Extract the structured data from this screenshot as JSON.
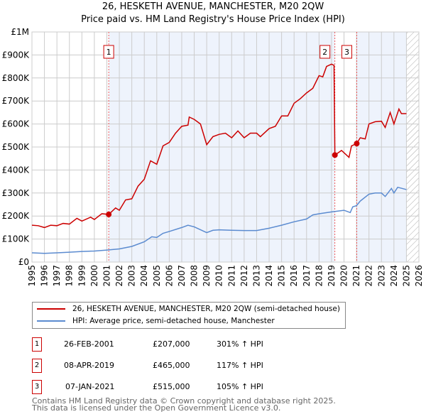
{
  "title": "26, HESKETH AVENUE, MANCHESTER, M20 2QW",
  "subtitle": "Price paid vs. HM Land Registry's House Price Index (HPI)",
  "chart_data": {
    "type": "line",
    "title": "26, HESKETH AVENUE, MANCHESTER, M20 2QW",
    "ylim": [
      0,
      1000000
    ],
    "xlim": [
      1995,
      2026
    ],
    "yticks": [
      {
        "v": 0,
        "l": "£0"
      },
      {
        "v": 100000,
        "l": "£100K"
      },
      {
        "v": 200000,
        "l": "£200K"
      },
      {
        "v": 300000,
        "l": "£300K"
      },
      {
        "v": 400000,
        "l": "£400K"
      },
      {
        "v": 500000,
        "l": "£500K"
      },
      {
        "v": 600000,
        "l": "£600K"
      },
      {
        "v": 700000,
        "l": "£700K"
      },
      {
        "v": 800000,
        "l": "£800K"
      },
      {
        "v": 900000,
        "l": "£900K"
      },
      {
        "v": 1000000,
        "l": "£1M"
      }
    ],
    "xticks": [
      1995,
      1996,
      1997,
      1998,
      1999,
      2000,
      2001,
      2002,
      2003,
      2004,
      2005,
      2006,
      2007,
      2008,
      2009,
      2010,
      2011,
      2012,
      2013,
      2014,
      2015,
      2016,
      2017,
      2018,
      2019,
      2020,
      2021,
      2022,
      2023,
      2024,
      2025,
      2026
    ],
    "series": [
      {
        "name": "26, HESKETH AVENUE, MANCHESTER, M20 2QW (semi-detached house)",
        "color": "#cc0000",
        "x": [
          1995,
          1995.5,
          1996,
          1996.5,
          1997,
          1997.5,
          1998,
          1998.6,
          1999,
          1999.7,
          2000,
          2000.6,
          2001.15,
          2001.7,
          2002,
          2002.5,
          2003,
          2003.5,
          2004,
          2004.5,
          2005,
          2005.5,
          2006,
          2006.5,
          2007,
          2007.5,
          2007.6,
          2008,
          2008.5,
          2009,
          2009.5,
          2010,
          2010.5,
          2011,
          2011.5,
          2012,
          2012.5,
          2013,
          2013.3,
          2014,
          2014.5,
          2015,
          2015.5,
          2016,
          2016.5,
          2017,
          2017.5,
          2018,
          2018.3,
          2018.6,
          2019.0,
          2019.2,
          2019.27,
          2019.8,
          2020.4,
          2020.6,
          2021.02,
          2021.3,
          2021.7,
          2022,
          2022.5,
          2023,
          2023.3,
          2023.7,
          2024,
          2024.4,
          2024.6,
          2025
        ],
        "y": [
          160000,
          158000,
          150000,
          160000,
          158000,
          168000,
          165000,
          190000,
          178000,
          195000,
          185000,
          210000,
          207000,
          235000,
          225000,
          270000,
          275000,
          330000,
          360000,
          440000,
          425000,
          505000,
          520000,
          560000,
          590000,
          595000,
          630000,
          620000,
          600000,
          510000,
          545000,
          555000,
          560000,
          540000,
          570000,
          540000,
          560000,
          560000,
          545000,
          580000,
          590000,
          635000,
          635000,
          690000,
          710000,
          735000,
          755000,
          810000,
          805000,
          850000,
          860000,
          855000,
          465000,
          485000,
          455000,
          505000,
          515000,
          540000,
          535000,
          600000,
          610000,
          612000,
          585000,
          650000,
          600000,
          665000,
          645000,
          645000
        ]
      },
      {
        "name": "HPI: Average price, semi-detached house, Manchester",
        "color": "#5b8bd0",
        "x": [
          1995,
          1996,
          1997,
          1998,
          1999,
          2000,
          2001,
          2002,
          2003,
          2004,
          2004.6,
          2005,
          2005.5,
          2006,
          2007,
          2007.5,
          2008,
          2009,
          2009.5,
          2010,
          2011,
          2012,
          2013,
          2014,
          2015,
          2016,
          2017,
          2017.5,
          2018,
          2019,
          2020,
          2020.5,
          2020.7,
          2021,
          2021.3,
          2022,
          2022.5,
          2023,
          2023.3,
          2023.8,
          2024,
          2024.3,
          2025
        ],
        "y": [
          40000,
          38000,
          40000,
          43000,
          46000,
          48000,
          52000,
          57000,
          68000,
          88000,
          110000,
          107000,
          125000,
          133000,
          150000,
          160000,
          153000,
          128000,
          138000,
          140000,
          138000,
          137000,
          137000,
          147000,
          160000,
          175000,
          187000,
          205000,
          210000,
          218000,
          225000,
          215000,
          240000,
          245000,
          265000,
          295000,
          300000,
          300000,
          285000,
          320000,
          300000,
          325000,
          315000
        ]
      }
    ],
    "sales": [
      {
        "label": "1",
        "x": 2001.15,
        "y": 207000,
        "date": "26-FEB-2001",
        "price": "£207,000",
        "hpi": "301% ↑ HPI"
      },
      {
        "label": "2",
        "x": 2019.27,
        "y": 465000,
        "date": "08-APR-2019",
        "price": "£465,000",
        "hpi": "117% ↑ HPI"
      },
      {
        "label": "3",
        "x": 2021.02,
        "y": 515000,
        "date": "07-JAN-2021",
        "price": "£515,000",
        "hpi": "105% ↑ HPI"
      }
    ],
    "forecast_from": 2025.0,
    "grid": true
  },
  "footer": [
    "Contains HM Land Registry data © Crown copyright and database right 2025.",
    "This data is licensed under the Open Government Licence v3.0."
  ]
}
